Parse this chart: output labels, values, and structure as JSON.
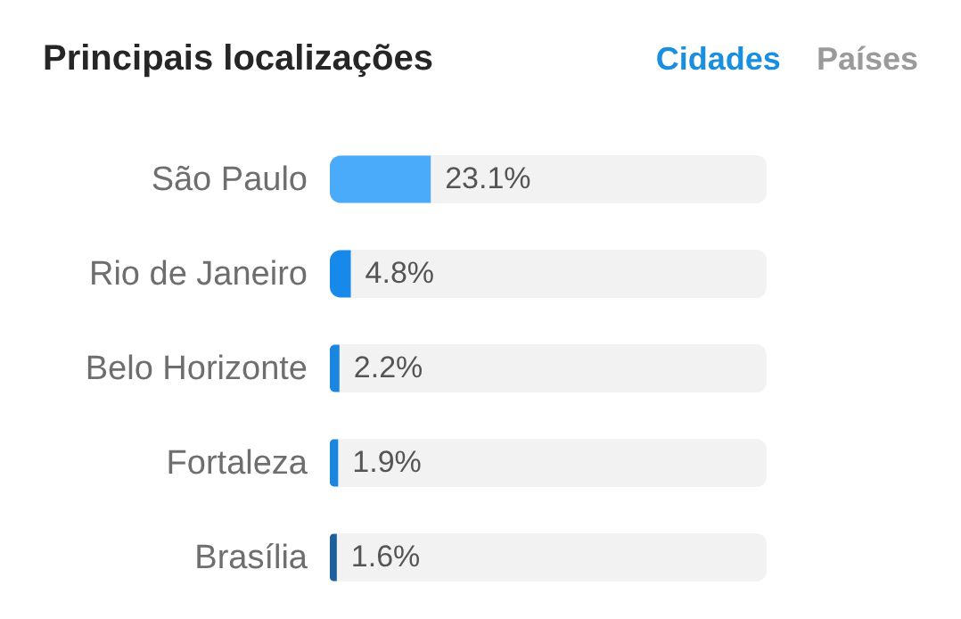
{
  "chart_data": {
    "type": "bar",
    "orientation": "horizontal",
    "title": "Principais localizações",
    "annotations": [
      "Cidades",
      "Países"
    ],
    "categories": [
      "São Paulo",
      "Rio de Janeiro",
      "Belo Horizonte",
      "Fortaleza",
      "Brasília"
    ],
    "values": [
      23.1,
      4.8,
      2.2,
      1.9,
      1.6
    ],
    "value_labels": [
      "23.1%",
      "4.8%",
      "2.2%",
      "1.9%",
      "1.6%"
    ],
    "colors": [
      "#4aabfb",
      "#1689ea",
      "#1a86e0",
      "#1a86e0",
      "#1d5f9c"
    ],
    "xlim": [
      0,
      100
    ],
    "tick_labels": "y",
    "grid": false
  }
}
